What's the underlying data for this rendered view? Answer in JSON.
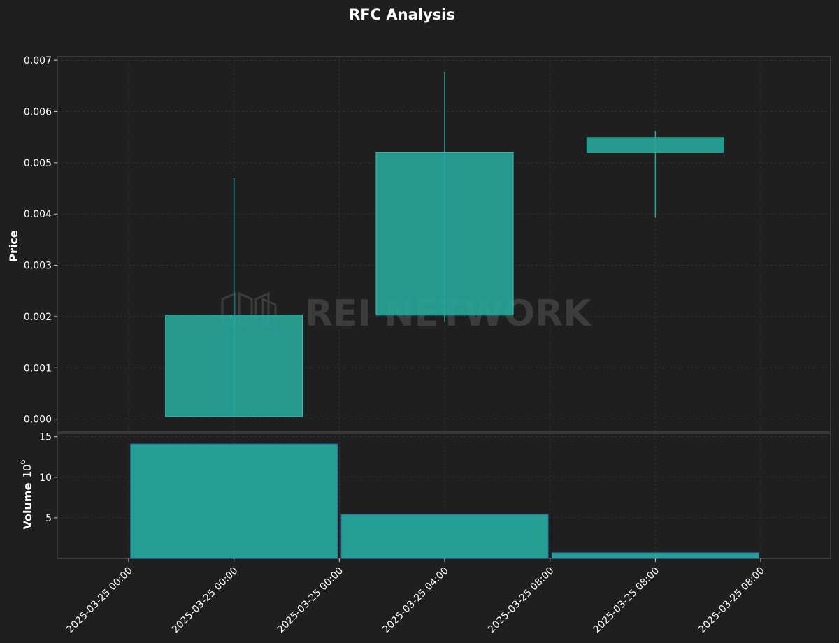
{
  "chart_data": {
    "type": "candlestick",
    "title": "RFC Analysis",
    "watermark": "REI NETWORK",
    "colors": {
      "background": "#1f1f1f",
      "up": "#26a69a",
      "grid": "#333333",
      "axes": "#444444",
      "watermark": "#3c3c3c"
    },
    "x_tick_labels": [
      "2025-03-25 00:00",
      "2025-03-25 00:00",
      "2025-03-25 00:00",
      "2025-03-25 04:00",
      "2025-03-25 08:00",
      "2025-03-25 08:00",
      "2025-03-25 08:00"
    ],
    "price": {
      "ylabel": "Price",
      "ylim": [
        -0.00025,
        0.00707
      ],
      "ticks": [
        0.0,
        0.001,
        0.002,
        0.003,
        0.004,
        0.005,
        0.006,
        0.007
      ],
      "tick_labels": [
        "0.000",
        "0.001",
        "0.002",
        "0.003",
        "0.004",
        "0.005",
        "0.006",
        "0.007"
      ],
      "candles": [
        {
          "time": "2025-03-25 00:00",
          "open": 5e-05,
          "close": 0.00203,
          "low": 5e-05,
          "high": 0.0047
        },
        {
          "time": "2025-03-25 04:00",
          "open": 0.00203,
          "close": 0.0052,
          "low": 0.0019,
          "high": 0.00677
        },
        {
          "time": "2025-03-25 08:00",
          "open": 0.0052,
          "close": 0.00549,
          "low": 0.00393,
          "high": 0.00562
        }
      ]
    },
    "volume": {
      "ylabel": "Volume",
      "multiplier_base": "10",
      "multiplier_exp": "6",
      "ylim": [
        0,
        15.4
      ],
      "ticks": [
        5,
        10,
        15
      ],
      "tick_labels": [
        "5",
        "10",
        "15"
      ],
      "values": [
        14.1,
        5.4,
        0.7
      ]
    }
  }
}
